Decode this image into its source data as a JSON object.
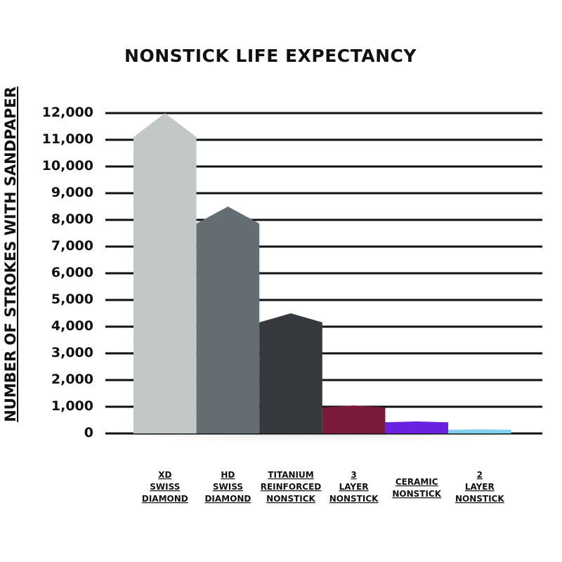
{
  "chart_data": {
    "type": "bar",
    "title": "NONSTICK LIFE EXPECTANCY",
    "xlabel": "",
    "ylabel": "NUMBER OF STROKES WITH SANDPAPER",
    "categories": [
      [
        "XD",
        "SWISS",
        "DIAMOND"
      ],
      [
        "HD",
        "SWISS",
        "DIAMOND"
      ],
      [
        "TITANIUM",
        "REINFORCED",
        "NONSTICK"
      ],
      [
        "3",
        "LAYER",
        "NONSTICK"
      ],
      [
        "CERAMIC",
        "NONSTICK"
      ],
      [
        "2",
        "LAYER",
        "NONSTICK"
      ]
    ],
    "values": [
      12000,
      8500,
      4500,
      1050,
      450,
      150
    ],
    "y_tick_labels": [
      "0",
      "1,000",
      "2,000",
      "3,000",
      "4,000",
      "5,000",
      "6,000",
      "7,000",
      "8,000",
      "9,000",
      "10,000",
      "11,000",
      "12,000"
    ],
    "ylim": [
      0,
      12000
    ],
    "grid": true,
    "legend": "none",
    "colors": [
      "#c2c7c7",
      "#646d71",
      "#35393d",
      "#7a1a3a",
      "#6b21e0",
      "#7ecff0"
    ]
  }
}
